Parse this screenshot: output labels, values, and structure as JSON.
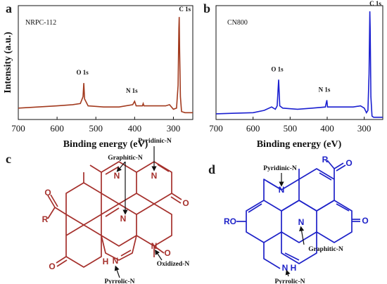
{
  "chart_data": [
    {
      "panel": "a",
      "type": "line",
      "sample_label": "NRPC-112",
      "xlabel": "Binding energy (eV)",
      "ylabel": "Intensity (a.u.)",
      "xlim": [
        700,
        250
      ],
      "xticks": [
        700,
        600,
        500,
        400,
        300
      ],
      "color": "#a23a1e",
      "peaks": [
        {
          "label": "O 1s",
          "x": 531
        },
        {
          "label": "N 1s",
          "x": 400
        },
        {
          "label": "C 1s",
          "x": 285
        }
      ],
      "series": [
        {
          "x": [
            700,
            650,
            600,
            560,
            540,
            533,
            531,
            529,
            520,
            480,
            440,
            405,
            400,
            396,
            380,
            378,
            376,
            340,
            320,
            310,
            300,
            292,
            288,
            286,
            285,
            284,
            282,
            279,
            270,
            260,
            250
          ],
          "y": [
            0.1,
            0.11,
            0.12,
            0.13,
            0.14,
            0.2,
            0.32,
            0.18,
            0.12,
            0.11,
            0.11,
            0.13,
            0.16,
            0.12,
            0.12,
            0.14,
            0.12,
            0.12,
            0.12,
            0.13,
            0.09,
            0.1,
            0.3,
            0.8,
            0.9,
            0.6,
            0.2,
            0.07,
            0.06,
            0.06,
            0.06
          ]
        }
      ]
    },
    {
      "panel": "b",
      "type": "line",
      "sample_label": "CN800",
      "xlabel": "Binding energy (eV)",
      "ylabel": "",
      "xlim": [
        700,
        250
      ],
      "xticks": [
        700,
        600,
        500,
        400,
        300
      ],
      "color": "#1a1fd0",
      "peaks": [
        {
          "label": "O 1s",
          "x": 531
        },
        {
          "label": "N 1s",
          "x": 400
        },
        {
          "label": "C 1s",
          "x": 285
        }
      ],
      "series": [
        {
          "x": [
            700,
            650,
            600,
            570,
            550,
            540,
            535,
            531,
            528,
            520,
            480,
            440,
            405,
            401,
            399,
            395,
            360,
            330,
            310,
            300,
            294,
            290,
            287,
            285,
            284,
            282,
            279,
            275,
            265,
            250
          ],
          "y": [
            0.05,
            0.055,
            0.06,
            0.08,
            0.11,
            0.09,
            0.12,
            0.35,
            0.12,
            0.1,
            0.09,
            0.1,
            0.11,
            0.17,
            0.11,
            0.11,
            0.11,
            0.11,
            0.12,
            0.1,
            0.06,
            0.08,
            0.4,
            0.95,
            0.8,
            0.2,
            0.03,
            0.02,
            0.02,
            0.02
          ]
        }
      ]
    }
  ],
  "structures": {
    "c": {
      "panel": "c",
      "color": "#a5302c",
      "atoms": {
        "n1": "N",
        "n2": "N",
        "n3": "N",
        "n4": "N",
        "nh": "N",
        "h": "H",
        "r": "R",
        "o1": "O",
        "o2": "O",
        "o3": "O",
        "o4": "O"
      },
      "annotations": {
        "pyridinic": "Pyridinic-N",
        "graphitic": "Graphitic-N",
        "oxidized": "Oxidized-N",
        "pyrrolic": "Pyrrolic-N"
      }
    },
    "d": {
      "panel": "d",
      "color": "#1e22c8",
      "atoms": {
        "n1": "N",
        "n2": "N",
        "nh": "N",
        "h": "H",
        "r": "R",
        "ro": "RO",
        "o1": "O",
        "o2": "O"
      },
      "annotations": {
        "pyridinic": "Pyridinic-N",
        "graphitic": "Graphitic-N",
        "pyrrolic": "Pyrrolic-N"
      }
    }
  }
}
